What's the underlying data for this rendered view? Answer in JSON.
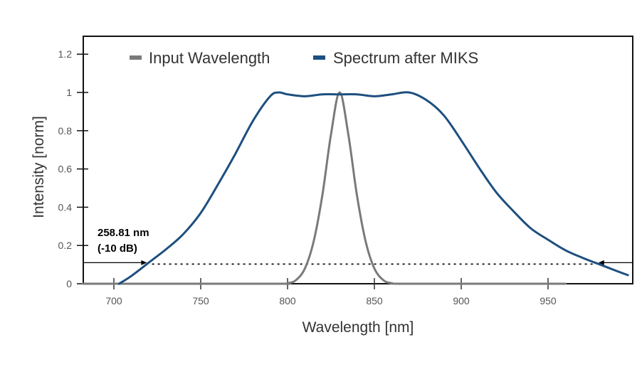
{
  "chart_data": {
    "type": "line",
    "title": "",
    "xlabel": "Wavelength [nm]",
    "ylabel": "Intensity [norm]",
    "xlim": [
      675,
      996
    ],
    "ylim": [
      0,
      1.3
    ],
    "xticks": [
      700,
      750,
      800,
      850,
      900,
      950
    ],
    "yticks": [
      0,
      0.2,
      0.4,
      0.6,
      0.8,
      1,
      1.2
    ],
    "ytick_labels": [
      "0",
      "0.2",
      "0.4",
      "0.6",
      "0.8",
      "1",
      "1.2"
    ],
    "grid": false,
    "legend_position": "top",
    "series": [
      {
        "name": "Input Wavelength",
        "color": "#7a7a7a",
        "x": [
          675,
          790,
          800,
          805,
          810,
          815,
          820,
          825,
          830,
          835,
          840,
          845,
          850,
          855,
          860,
          870,
          960
        ],
        "y": [
          0,
          0,
          0.003,
          0.02,
          0.08,
          0.22,
          0.46,
          0.78,
          1.0,
          0.78,
          0.46,
          0.22,
          0.08,
          0.02,
          0.003,
          0,
          0
        ]
      },
      {
        "name": "Spectrum after MIKS",
        "color": "#1d4f7f",
        "x": [
          703,
          710,
          720,
          730,
          740,
          750,
          760,
          770,
          780,
          790,
          795,
          800,
          810,
          820,
          830,
          840,
          850,
          860,
          870,
          880,
          890,
          900,
          910,
          920,
          930,
          940,
          950,
          960,
          970,
          980,
          990,
          996
        ],
        "y": [
          0,
          0.04,
          0.11,
          0.18,
          0.26,
          0.37,
          0.52,
          0.68,
          0.85,
          0.98,
          1.0,
          0.99,
          0.98,
          0.99,
          0.99,
          0.99,
          0.98,
          0.99,
          1.0,
          0.96,
          0.88,
          0.75,
          0.61,
          0.48,
          0.38,
          0.29,
          0.23,
          0.175,
          0.135,
          0.1,
          0.065,
          0.045
        ]
      }
    ],
    "annotations": [
      {
        "text_line1": "258.81 nm",
        "text_line2": "(-10 dB)",
        "level": 0.11,
        "left_crossing_nm": 719,
        "right_crossing_nm": 979,
        "style": "dotted line with arrows"
      }
    ]
  }
}
